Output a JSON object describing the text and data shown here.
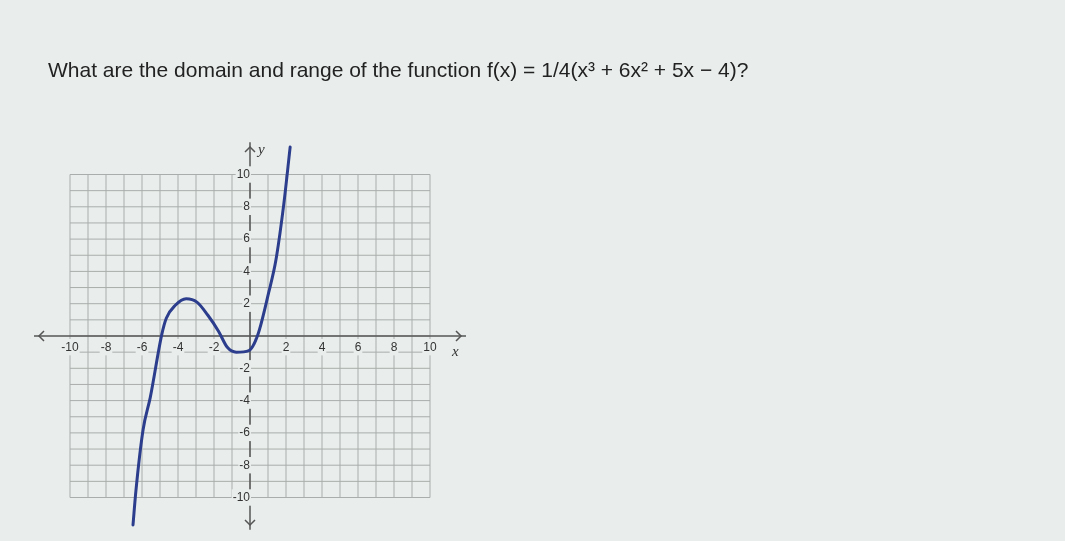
{
  "chart_data": {
    "type": "line",
    "title": "What are the domain and range of the function f(x) = 1/4(x³ + 6x² + 5x − 4)?",
    "xlabel": "x",
    "ylabel": "y",
    "x": [
      -6.5,
      -6.34,
      -5.94,
      -5.54,
      -4.9,
      -4.65,
      -4.15,
      -3.55,
      -2.95,
      -2.35,
      -1.75,
      -1.26,
      -0.76,
      -0.06,
      0.44,
      1.04,
      1.44,
      1.87,
      2.23
    ],
    "series": [
      {
        "color": "#2b3d8c",
        "values": [
          -11.7,
          -9.6,
          -5.8,
          -3.8,
          0.1,
          1.1,
          1.9,
          2.3,
          2.1,
          1.3,
          0.3,
          -0.7,
          -1,
          -0.9,
          0.1,
          2.7,
          4.7,
          8.1,
          11.7
        ]
      }
    ],
    "xlim": [
      -12,
      12
    ],
    "ylim": [
      -12,
      12
    ],
    "xticks": [
      -10,
      -8,
      -6,
      -4,
      -2,
      2,
      4,
      6,
      8,
      10
    ],
    "yticks": [
      -10,
      -8,
      -6,
      -4,
      -2,
      2,
      4,
      6,
      8,
      10
    ],
    "grid": true,
    "legend": false,
    "marker": "none",
    "line_style": "solid"
  }
}
